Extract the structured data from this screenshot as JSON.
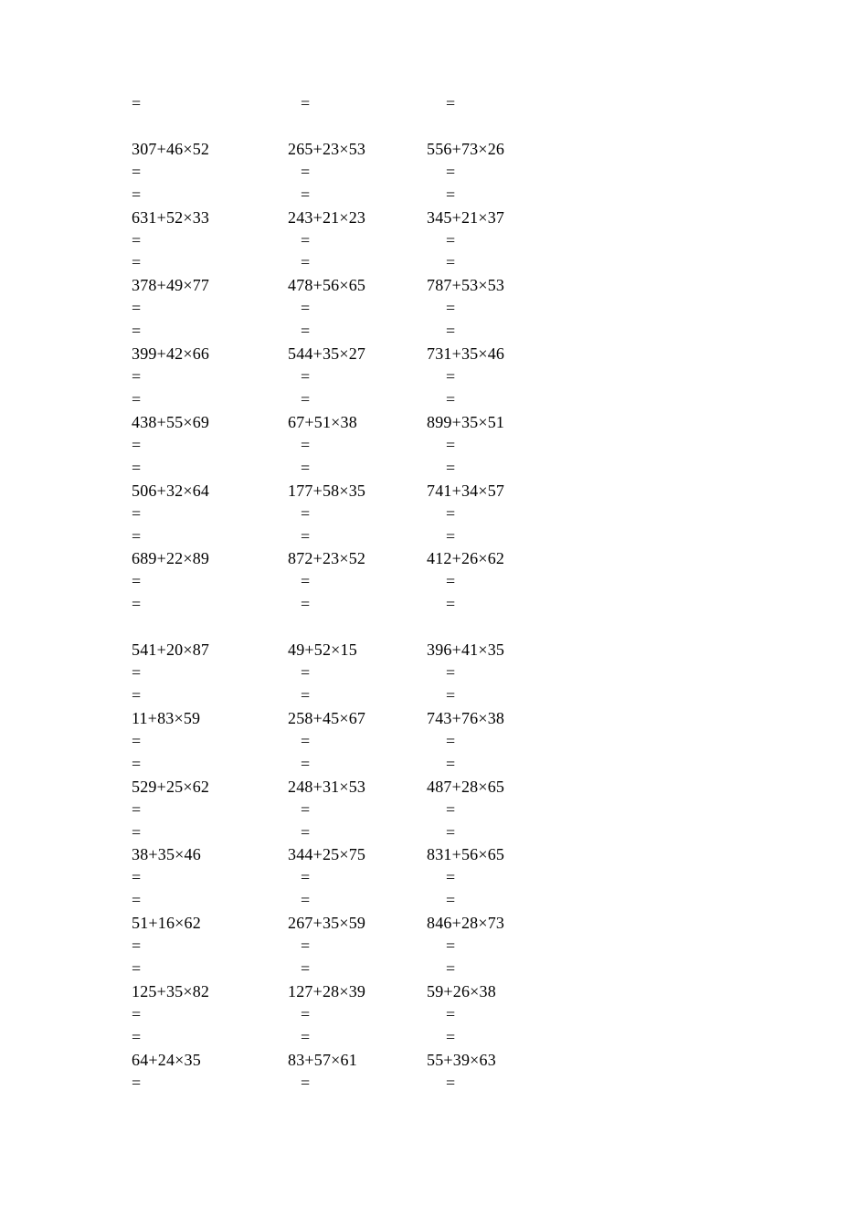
{
  "page": {
    "background_color": "#ffffff",
    "text_color": "#000000"
  },
  "worksheet": {
    "equals_symbol": "=",
    "leading_equals_row": true,
    "equals_lines_per_problem": 2,
    "last_row_equals_lines": 1,
    "groups": [
      {
        "rows": [
          [
            "307+46×52",
            "265+23×53",
            "556+73×26"
          ],
          [
            "631+52×33",
            "243+21×23",
            "345+21×37"
          ],
          [
            "378+49×77",
            "478+56×65",
            "787+53×53"
          ],
          [
            "399+42×66",
            "544+35×27",
            "731+35×46"
          ],
          [
            "438+55×69",
            "67+51×38",
            "899+35×51"
          ],
          [
            "506+32×64",
            "177+58×35",
            "741+34×57"
          ],
          [
            "689+22×89",
            "872+23×52",
            "412+26×62"
          ]
        ]
      },
      {
        "rows": [
          [
            "541+20×87",
            "49+52×15",
            "396+41×35"
          ],
          [
            "11+83×59",
            "258+45×67",
            "743+76×38"
          ],
          [
            "529+25×62",
            "248+31×53",
            "487+28×65"
          ],
          [
            "38+35×46",
            "344+25×75",
            "831+56×65"
          ],
          [
            "51+16×62",
            "267+35×59",
            "846+28×73"
          ],
          [
            "125+35×82",
            "127+28×39",
            "59+26×38"
          ],
          [
            "64+24×35",
            "83+57×61",
            "55+39×63"
          ]
        ]
      }
    ]
  }
}
